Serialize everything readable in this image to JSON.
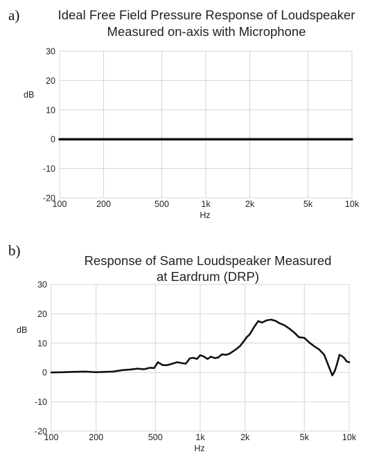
{
  "chart_data": [
    {
      "panel": "a)",
      "type": "line",
      "title": [
        "Ideal Free Field Pressure Response of Loudspeaker",
        "Measured on-axis with Microphone"
      ],
      "xlabel": "Hz",
      "ylabel": "dB",
      "xscale": "log",
      "xlim": [
        100,
        10000
      ],
      "ylim": [
        -20,
        30
      ],
      "x_ticks": [
        100,
        200,
        500,
        1000,
        2000,
        5000,
        10000
      ],
      "x_tick_labels": [
        "100",
        "200",
        "500",
        "1k",
        "2k",
        "5k",
        "10k"
      ],
      "y_ticks": [
        -20,
        -10,
        0,
        10,
        20,
        30
      ],
      "y_tick_labels": [
        "-20",
        "-10",
        "0",
        "10",
        "20",
        "30"
      ],
      "grid": true,
      "series": [
        {
          "x": [
            100,
            10000
          ],
          "y": [
            0,
            0
          ]
        }
      ]
    },
    {
      "panel": "b)",
      "type": "line",
      "title": [
        "Response of Same Loudspeaker Measured",
        "at Eardrum (DRP)"
      ],
      "xlabel": "Hz",
      "ylabel": "dB",
      "xscale": "log",
      "xlim": [
        100,
        10000
      ],
      "ylim": [
        -20,
        30
      ],
      "x_ticks": [
        100,
        200,
        500,
        1000,
        2000,
        5000,
        10000
      ],
      "x_tick_labels": [
        "100",
        "200",
        "500",
        "1k",
        "2k",
        "5k",
        "10k"
      ],
      "y_ticks": [
        -20,
        -10,
        0,
        10,
        20,
        30
      ],
      "y_tick_labels": [
        "-20",
        "-10",
        "0",
        "10",
        "20",
        "30"
      ],
      "grid": true,
      "series": [
        {
          "x": [
            100,
            120,
            140,
            170,
            200,
            230,
            260,
            300,
            340,
            380,
            420,
            460,
            490,
            520,
            560,
            600,
            650,
            700,
            750,
            800,
            850,
            900,
            950,
            1000,
            1060,
            1120,
            1180,
            1250,
            1320,
            1400,
            1480,
            1560,
            1650,
            1750,
            1850,
            1950,
            2050,
            2150,
            2300,
            2450,
            2600,
            2800,
            3000,
            3200,
            3400,
            3700,
            4000,
            4300,
            4600,
            5000,
            5400,
            5800,
            6300,
            6800,
            7300,
            7700,
            8000,
            8300,
            8600,
            9000,
            9300,
            9600,
            10000
          ],
          "y": [
            0,
            0.1,
            0.2,
            0.3,
            0.1,
            0.2,
            0.3,
            0.8,
            1.0,
            1.3,
            1.1,
            1.6,
            1.5,
            3.5,
            2.5,
            2.5,
            3.0,
            3.5,
            3.2,
            3.0,
            4.8,
            5.0,
            4.6,
            5.9,
            5.4,
            4.6,
            5.4,
            4.9,
            5.1,
            6.2,
            6.0,
            6.3,
            7.1,
            8.0,
            9.0,
            10.5,
            12.0,
            13.0,
            15.5,
            17.5,
            17.0,
            17.8,
            18.0,
            17.6,
            16.8,
            16.0,
            14.8,
            13.5,
            12.0,
            11.8,
            10.2,
            9.0,
            7.8,
            6.0,
            2.0,
            -1.0,
            0.5,
            3.0,
            6.0,
            5.5,
            4.8,
            3.8,
            3.5
          ]
        }
      ]
    }
  ]
}
